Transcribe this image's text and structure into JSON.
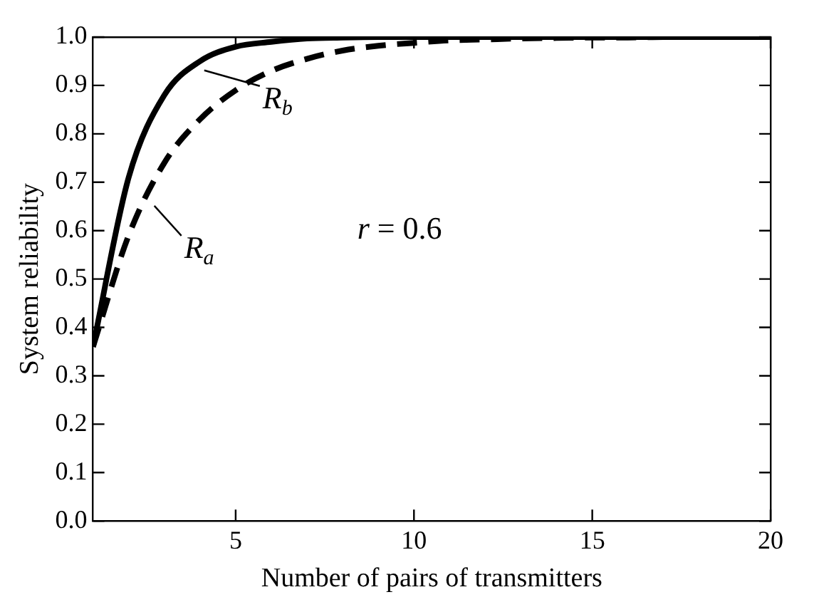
{
  "chart_data": {
    "type": "line",
    "xlabel": "Number of pairs of transmitters",
    "ylabel": "System reliability",
    "x": [
      1,
      2,
      3,
      4,
      5,
      6,
      7,
      8,
      9,
      10,
      11,
      12,
      13,
      14,
      15,
      16,
      17,
      18,
      19,
      20
    ],
    "series": [
      {
        "color": "#000000",
        "line_style": "dashed",
        "values": [
          0.36,
          0.59,
          0.74,
          0.83,
          0.89,
          0.93,
          0.955,
          0.972,
          0.982,
          0.988,
          0.993,
          0.995,
          0.997,
          0.998,
          0.999,
          0.999,
          1,
          1,
          1,
          1
        ]
      },
      {
        "color": "#000000",
        "line_style": "solid",
        "values": [
          0.36,
          0.71,
          0.88,
          0.95,
          0.98,
          0.99,
          0.997,
          0.999,
          1,
          1,
          1,
          1,
          1,
          1,
          1,
          1,
          1,
          1,
          1,
          1
        ]
      }
    ],
    "xlim": [
      1,
      20
    ],
    "xticks": [
      5,
      10,
      15,
      20
    ],
    "ylim": [
      0,
      1
    ],
    "yticks": [
      {
        "value": 0,
        "label": "0.0"
      },
      {
        "value": 0.1,
        "label": "0.1"
      },
      {
        "value": 0.2,
        "label": "0.2"
      },
      {
        "value": 0.3,
        "label": "0.3"
      },
      {
        "value": 0.4,
        "label": "0.4"
      },
      {
        "value": 0.5,
        "label": "0.5"
      },
      {
        "value": 0.6,
        "label": "0.6"
      },
      {
        "value": 0.7,
        "label": "0.7"
      },
      {
        "value": 0.8,
        "label": "0.8"
      },
      {
        "value": 0.9,
        "label": "0.9"
      },
      {
        "value": 1,
        "label": "1.0"
      }
    ],
    "grid": false,
    "legend": false,
    "marker": "none",
    "annotations": [
      {
        "text": "R$_{a}$",
        "x": 2.6,
        "y": 0.66
      },
      {
        "text": "R$_{b}$",
        "x": 4,
        "y": 0.94
      },
      "r = 0.6"
    ]
  }
}
